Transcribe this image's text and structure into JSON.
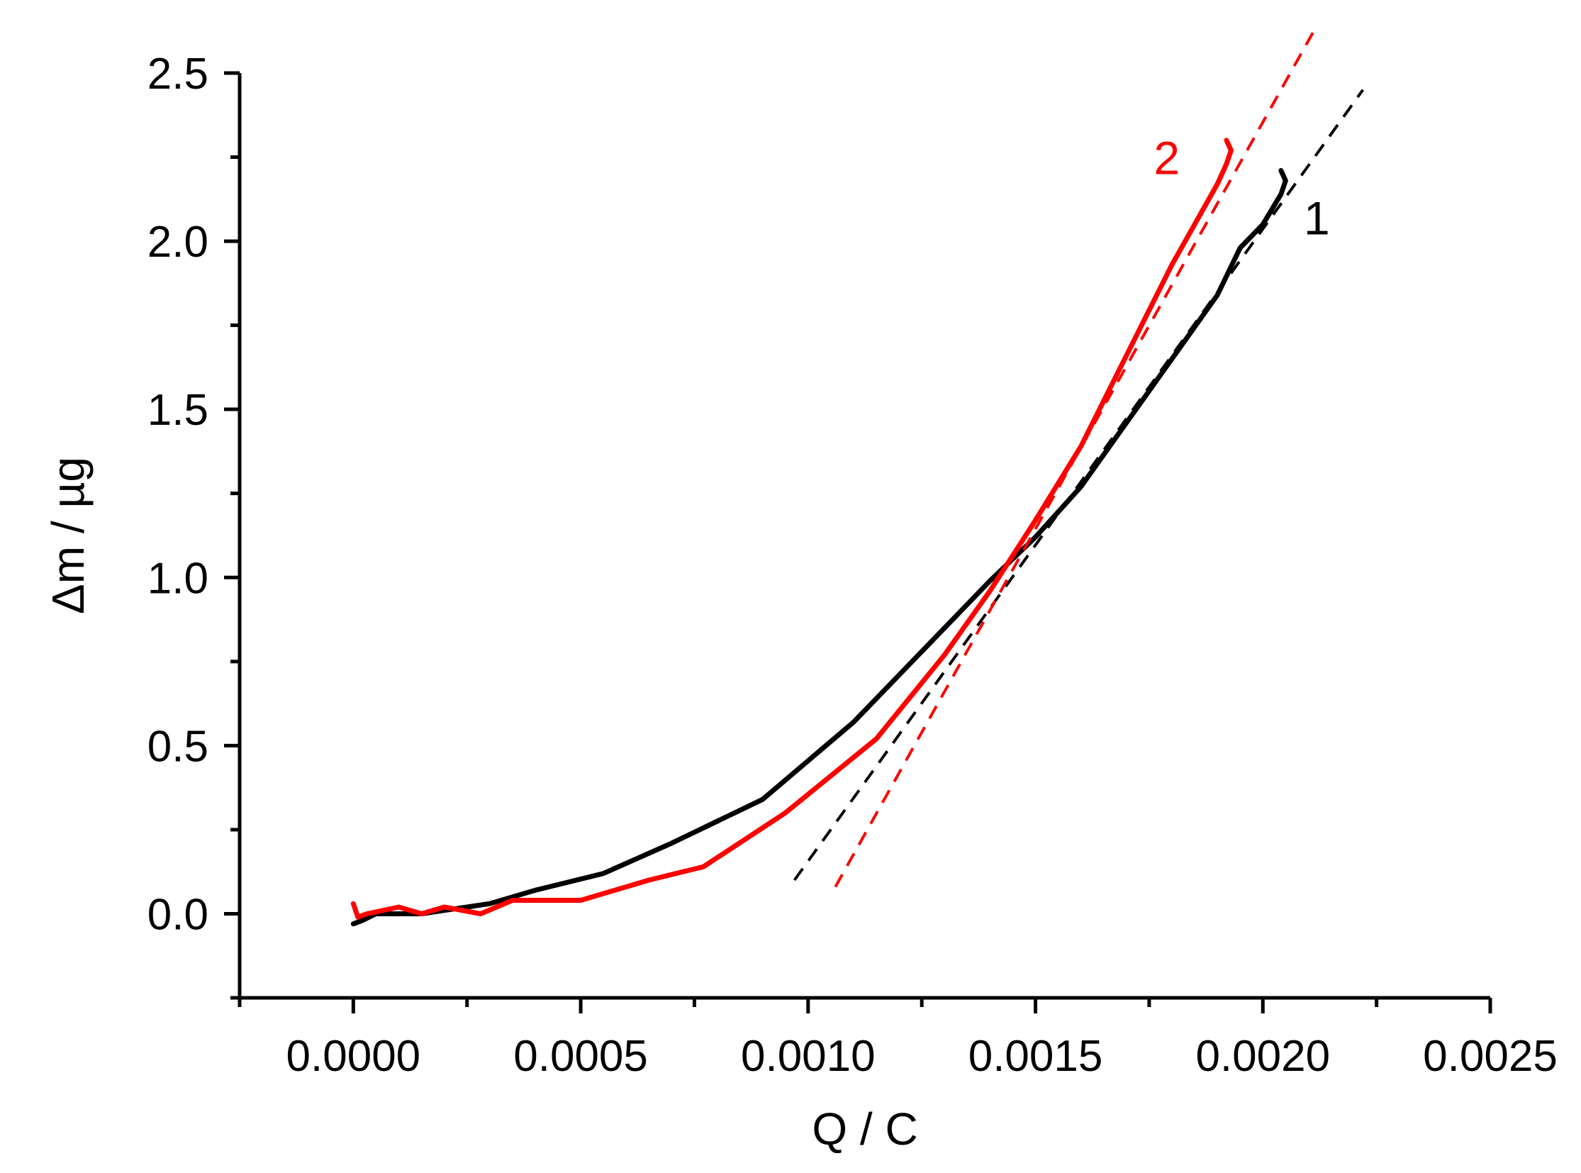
{
  "chart_data": {
    "type": "line",
    "xlabel": "Q / C",
    "ylabel": "Δm / µg",
    "xlim": [
      -0.00025,
      0.0025
    ],
    "ylim": [
      -0.25,
      2.5
    ],
    "xticks": [
      0.0,
      0.0005,
      0.001,
      0.0015,
      0.002,
      0.0025
    ],
    "xtick_labels": [
      "0.0000",
      "0.0005",
      "0.0010",
      "0.0015",
      "0.0020",
      "0.0025"
    ],
    "yticks": [
      0.0,
      0.5,
      1.0,
      1.5,
      2.0,
      2.5
    ],
    "ytick_labels": [
      "0.0",
      "0.5",
      "1.0",
      "1.5",
      "2.0",
      "2.5"
    ],
    "grid": false,
    "series": [
      {
        "label": "1",
        "color": "#000000",
        "style": "solid",
        "x": [
          0.0,
          2e-05,
          5e-05,
          0.0001,
          0.00015,
          0.0002,
          0.00025,
          0.0003,
          0.0004,
          0.00055,
          0.0007,
          0.0009,
          0.0011,
          0.0013,
          0.0014,
          0.0015,
          0.0016,
          0.0017,
          0.0018,
          0.0019,
          0.00195,
          0.002,
          0.00204,
          0.00205,
          0.00204
        ],
        "y": [
          -0.03,
          -0.02,
          0.0,
          0.0,
          0.0,
          0.01,
          0.02,
          0.03,
          0.07,
          0.12,
          0.21,
          0.34,
          0.57,
          0.85,
          0.99,
          1.12,
          1.27,
          1.46,
          1.65,
          1.84,
          1.98,
          2.05,
          2.14,
          2.18,
          2.21
        ]
      },
      {
        "label": "2",
        "color": "#ff0000",
        "style": "solid",
        "x": [
          0.0,
          1e-05,
          3e-05,
          0.0001,
          0.00015,
          0.0002,
          0.00028,
          0.00035,
          0.0005,
          0.00065,
          0.00077,
          0.00095,
          0.00115,
          0.0013,
          0.0014,
          0.0015,
          0.0016,
          0.0017,
          0.0018,
          0.0019,
          0.00192,
          0.00193,
          0.00192
        ],
        "y": [
          0.03,
          -0.01,
          0.0,
          0.02,
          0.0,
          0.02,
          0.0,
          0.04,
          0.04,
          0.1,
          0.14,
          0.3,
          0.52,
          0.77,
          0.96,
          1.17,
          1.39,
          1.66,
          1.93,
          2.17,
          2.23,
          2.27,
          2.3
        ]
      },
      {
        "label": "",
        "color": "#000000",
        "style": "dashed",
        "x": [
          0.00097,
          0.00222
        ],
        "y": [
          0.1,
          2.45
        ]
      },
      {
        "label": "",
        "color": "#ff0000",
        "style": "dashed",
        "x": [
          0.00106,
          0.00211
        ],
        "y": [
          0.08,
          2.62
        ]
      }
    ]
  }
}
